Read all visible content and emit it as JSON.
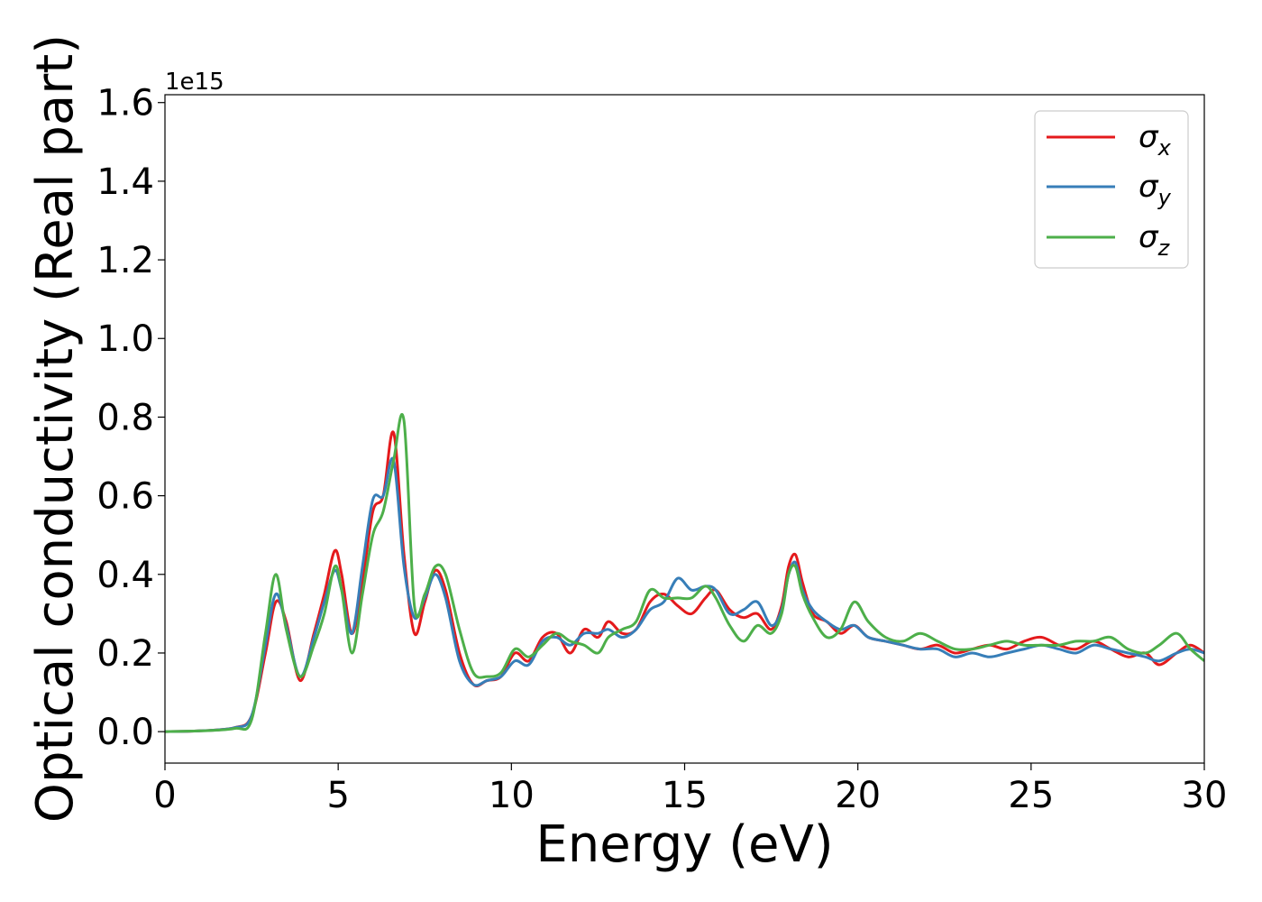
{
  "chart_data": {
    "type": "line",
    "xlabel": "Energy (eV)",
    "ylabel": "Optical conductivity (Real part)",
    "y_offset_label": "1e15",
    "xlim": [
      0,
      30
    ],
    "ylim": [
      -0.08,
      1.62
    ],
    "x_ticks": [
      0,
      5,
      10,
      15,
      20,
      25,
      30
    ],
    "x_tick_labels": [
      "0",
      "5",
      "10",
      "15",
      "20",
      "25",
      "30"
    ],
    "y_ticks": [
      0.0,
      0.2,
      0.4,
      0.6,
      0.8,
      1.0,
      1.2,
      1.4,
      1.6
    ],
    "y_tick_labels": [
      "0.0",
      "0.2",
      "0.4",
      "0.6",
      "0.8",
      "1.0",
      "1.2",
      "1.4",
      "1.6"
    ],
    "grid": false,
    "legend_position": "top-right",
    "series": [
      {
        "name": "σx",
        "symbol": "σ",
        "subscript": "x",
        "color": "#e41a1c",
        "x": [
          0,
          1,
          2,
          2.5,
          2.9,
          3.2,
          3.5,
          3.9,
          4.3,
          4.6,
          4.9,
          5.1,
          5.4,
          5.7,
          6.0,
          6.3,
          6.6,
          6.9,
          7.2,
          7.5,
          7.8,
          8.1,
          8.5,
          8.9,
          9.3,
          9.7,
          10.1,
          10.5,
          10.9,
          11.3,
          11.7,
          12.1,
          12.5,
          12.8,
          13.2,
          13.6,
          14.0,
          14.4,
          14.8,
          15.2,
          15.6,
          15.9,
          16.3,
          16.7,
          17.1,
          17.5,
          17.8,
          18.0,
          18.2,
          18.4,
          18.7,
          19.1,
          19.5,
          19.9,
          20.3,
          20.8,
          21.3,
          21.8,
          22.3,
          22.8,
          23.3,
          23.8,
          24.3,
          24.8,
          25.3,
          25.8,
          26.3,
          26.8,
          27.3,
          27.8,
          28.3,
          28.7,
          29.2,
          29.6,
          30
        ],
        "y": [
          0,
          0.002,
          0.01,
          0.04,
          0.2,
          0.33,
          0.28,
          0.13,
          0.25,
          0.35,
          0.46,
          0.4,
          0.25,
          0.38,
          0.56,
          0.6,
          0.76,
          0.45,
          0.25,
          0.33,
          0.41,
          0.36,
          0.2,
          0.12,
          0.13,
          0.14,
          0.2,
          0.18,
          0.24,
          0.25,
          0.2,
          0.26,
          0.24,
          0.28,
          0.25,
          0.26,
          0.33,
          0.35,
          0.32,
          0.3,
          0.34,
          0.36,
          0.31,
          0.29,
          0.3,
          0.26,
          0.32,
          0.42,
          0.45,
          0.38,
          0.3,
          0.28,
          0.25,
          0.27,
          0.24,
          0.23,
          0.22,
          0.21,
          0.22,
          0.2,
          0.21,
          0.22,
          0.21,
          0.23,
          0.24,
          0.22,
          0.21,
          0.23,
          0.21,
          0.19,
          0.2,
          0.17,
          0.2,
          0.22,
          0.2
        ]
      },
      {
        "name": "σy",
        "symbol": "σ",
        "subscript": "y",
        "color": "#377eb8",
        "x": [
          0,
          1,
          2,
          2.5,
          2.9,
          3.2,
          3.5,
          3.9,
          4.3,
          4.6,
          4.9,
          5.1,
          5.4,
          5.7,
          6.0,
          6.3,
          6.6,
          6.9,
          7.2,
          7.5,
          7.8,
          8.1,
          8.5,
          8.9,
          9.3,
          9.7,
          10.1,
          10.5,
          10.9,
          11.3,
          11.7,
          12.1,
          12.5,
          12.8,
          13.2,
          13.6,
          14.0,
          14.4,
          14.8,
          15.2,
          15.6,
          15.9,
          16.3,
          16.7,
          17.1,
          17.5,
          17.8,
          18.0,
          18.2,
          18.4,
          18.7,
          19.1,
          19.5,
          19.9,
          20.3,
          20.8,
          21.3,
          21.8,
          22.3,
          22.8,
          23.3,
          23.8,
          24.3,
          24.8,
          25.3,
          25.8,
          26.3,
          26.8,
          27.3,
          27.8,
          28.3,
          28.7,
          29.2,
          29.6,
          30
        ],
        "y": [
          0,
          0.002,
          0.01,
          0.04,
          0.22,
          0.35,
          0.27,
          0.14,
          0.24,
          0.33,
          0.41,
          0.36,
          0.25,
          0.42,
          0.59,
          0.6,
          0.69,
          0.42,
          0.29,
          0.34,
          0.4,
          0.34,
          0.18,
          0.12,
          0.13,
          0.14,
          0.18,
          0.17,
          0.23,
          0.24,
          0.22,
          0.25,
          0.25,
          0.26,
          0.24,
          0.26,
          0.31,
          0.33,
          0.39,
          0.36,
          0.37,
          0.36,
          0.3,
          0.31,
          0.33,
          0.27,
          0.31,
          0.4,
          0.43,
          0.36,
          0.31,
          0.28,
          0.26,
          0.27,
          0.24,
          0.23,
          0.22,
          0.21,
          0.21,
          0.19,
          0.2,
          0.19,
          0.2,
          0.21,
          0.22,
          0.21,
          0.2,
          0.22,
          0.21,
          0.2,
          0.19,
          0.18,
          0.2,
          0.21,
          0.2
        ]
      },
      {
        "name": "σz",
        "symbol": "σ",
        "subscript": "z",
        "color": "#4daf4a",
        "x": [
          0,
          1,
          2,
          2.5,
          2.9,
          3.2,
          3.5,
          3.9,
          4.3,
          4.6,
          4.9,
          5.1,
          5.4,
          5.7,
          6.0,
          6.3,
          6.6,
          6.9,
          7.2,
          7.5,
          7.8,
          8.1,
          8.5,
          8.9,
          9.3,
          9.7,
          10.1,
          10.5,
          10.9,
          11.3,
          11.7,
          12.1,
          12.5,
          12.8,
          13.2,
          13.6,
          14.0,
          14.4,
          14.8,
          15.2,
          15.6,
          15.9,
          16.3,
          16.7,
          17.1,
          17.5,
          17.8,
          18.0,
          18.2,
          18.4,
          18.7,
          19.1,
          19.5,
          19.9,
          20.3,
          20.8,
          21.3,
          21.8,
          22.3,
          22.8,
          23.3,
          23.8,
          24.3,
          24.8,
          25.3,
          25.8,
          26.3,
          26.8,
          27.3,
          27.8,
          28.3,
          28.7,
          29.2,
          29.6,
          30
        ],
        "y": [
          0,
          0.002,
          0.008,
          0.03,
          0.25,
          0.4,
          0.26,
          0.14,
          0.22,
          0.3,
          0.42,
          0.36,
          0.2,
          0.35,
          0.5,
          0.56,
          0.69,
          0.79,
          0.32,
          0.35,
          0.42,
          0.4,
          0.26,
          0.15,
          0.14,
          0.15,
          0.21,
          0.19,
          0.22,
          0.25,
          0.23,
          0.22,
          0.2,
          0.24,
          0.26,
          0.28,
          0.36,
          0.34,
          0.34,
          0.34,
          0.37,
          0.34,
          0.27,
          0.23,
          0.27,
          0.25,
          0.3,
          0.4,
          0.42,
          0.35,
          0.29,
          0.24,
          0.26,
          0.33,
          0.28,
          0.24,
          0.23,
          0.25,
          0.23,
          0.21,
          0.21,
          0.22,
          0.23,
          0.22,
          0.22,
          0.22,
          0.23,
          0.23,
          0.24,
          0.21,
          0.2,
          0.22,
          0.25,
          0.21,
          0.18
        ]
      }
    ]
  }
}
